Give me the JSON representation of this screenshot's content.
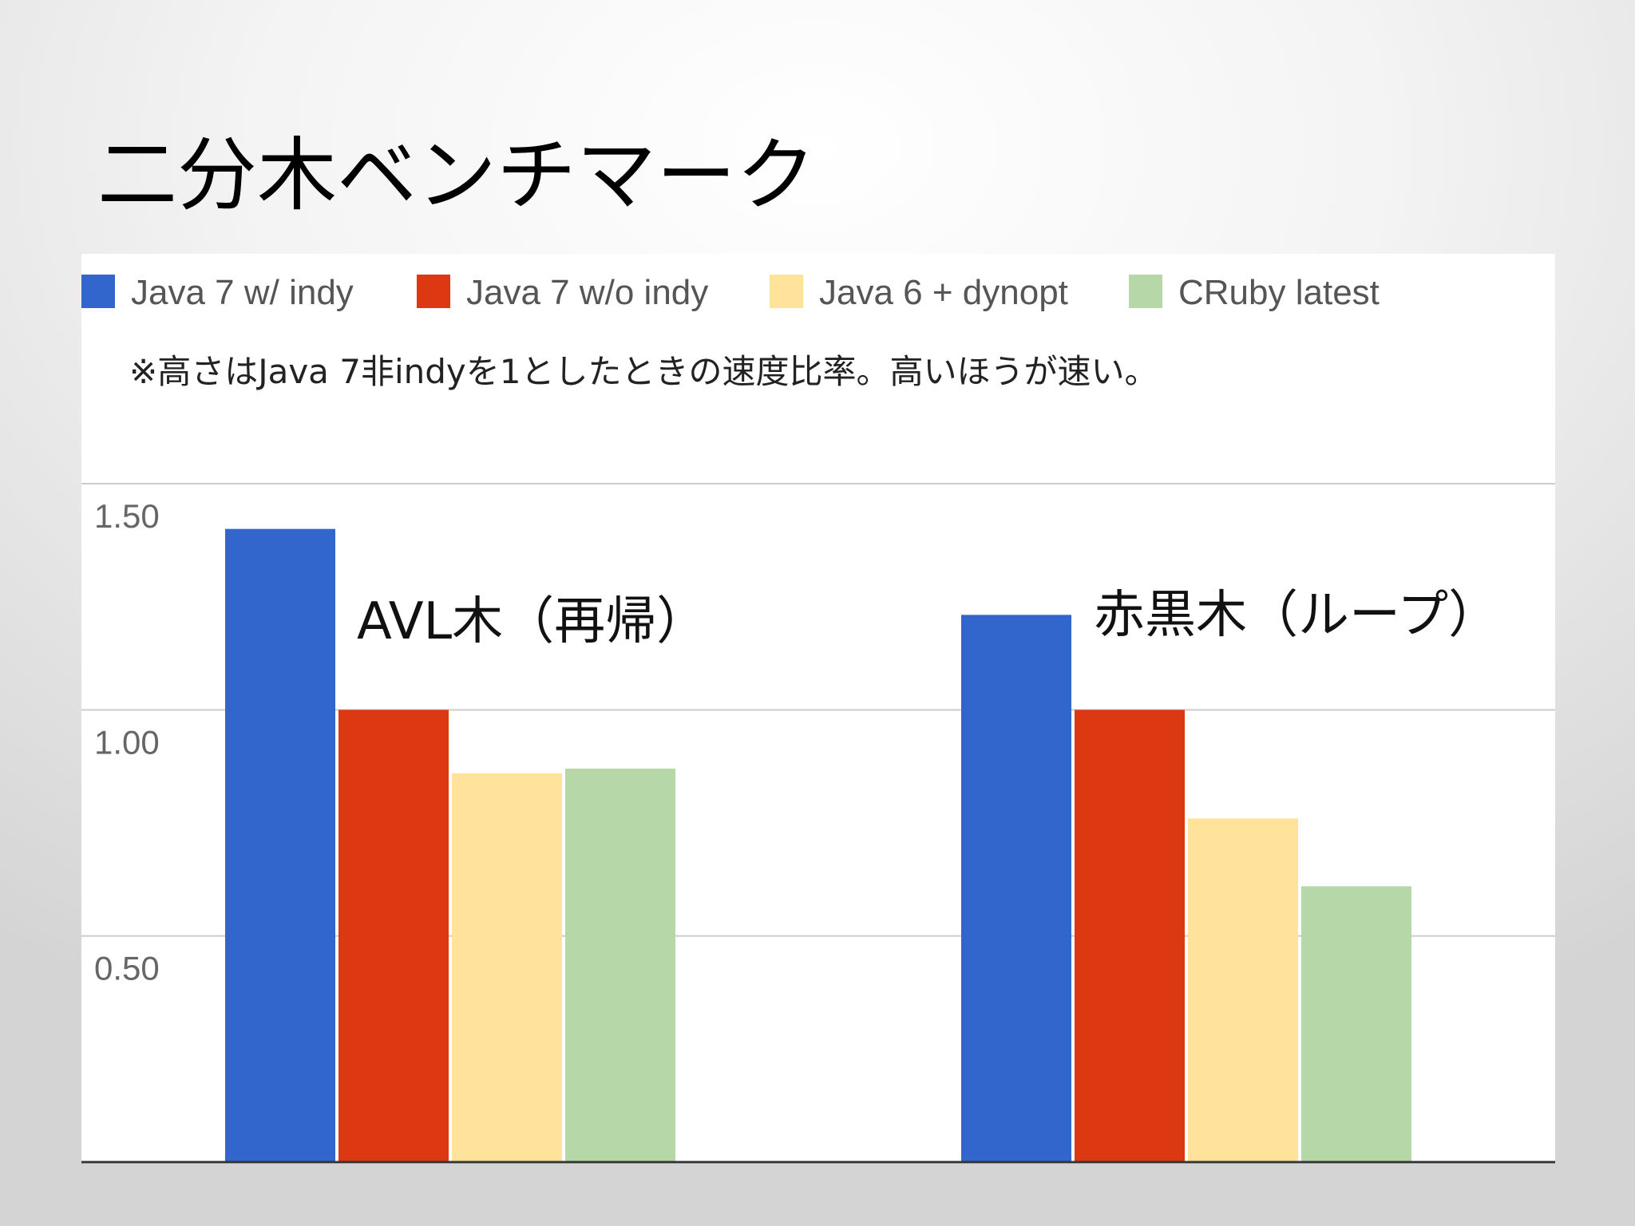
{
  "title": "二分木ベンチマーク",
  "chart_data": {
    "type": "bar",
    "categories": [
      "AVL木（再帰）",
      "赤黒木（ループ）"
    ],
    "series": [
      {
        "name": "Java 7 w/ indy",
        "color": "#3366cc",
        "values": [
          1.4,
          1.21
        ]
      },
      {
        "name": "Java 7 w/o indy",
        "color": "#dc3912",
        "values": [
          1.0,
          1.0
        ]
      },
      {
        "name": "Java 6 + dynopt",
        "color": "#ffe39a",
        "values": [
          0.86,
          0.76
        ]
      },
      {
        "name": "CRuby latest",
        "color": "#b6d7a8",
        "values": [
          0.87,
          0.61
        ]
      }
    ],
    "note": "※高さはJava 7非indyを1としたときの速度比率。高いほうが速い。",
    "yticks": [
      "1.50",
      "1.00",
      "0.50"
    ],
    "ylim": [
      0,
      1.5
    ],
    "grid": true,
    "legend_position": "top"
  }
}
